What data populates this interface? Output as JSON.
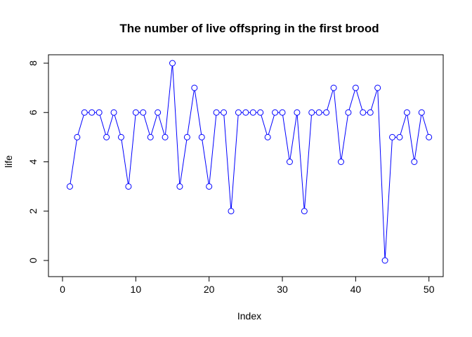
{
  "chart_data": {
    "type": "line",
    "title": "The number of live offspring in the first brood",
    "xlabel": "Index",
    "ylabel": "life",
    "xlim": [
      0,
      52
    ],
    "ylim": [
      0,
      8
    ],
    "x_ticks": [
      0,
      10,
      20,
      30,
      40,
      50
    ],
    "y_ticks": [
      0,
      2,
      4,
      6,
      8
    ],
    "grid": false,
    "legend": "none",
    "colors": {
      "series": "#0000ff",
      "axis": "#000000"
    },
    "markers": "open-circle",
    "x": [
      1,
      2,
      3,
      4,
      5,
      6,
      7,
      8,
      9,
      10,
      11,
      12,
      13,
      14,
      15,
      16,
      17,
      18,
      19,
      20,
      21,
      22,
      23,
      24,
      25,
      26,
      27,
      28,
      29,
      30,
      31,
      32,
      33,
      34,
      35,
      36,
      37,
      38,
      39,
      40,
      41,
      42,
      43,
      44,
      45,
      46,
      47,
      48,
      49,
      50
    ],
    "values": [
      3,
      5,
      6,
      6,
      6,
      5,
      6,
      5,
      3,
      6,
      6,
      5,
      6,
      5,
      8,
      3,
      5,
      7,
      5,
      3,
      6,
      6,
      2,
      6,
      6,
      6,
      6,
      5,
      6,
      6,
      4,
      6,
      2,
      6,
      6,
      6,
      7,
      4,
      6,
      7,
      6,
      6,
      7,
      0,
      5,
      5,
      6,
      4,
      6,
      5
    ]
  }
}
